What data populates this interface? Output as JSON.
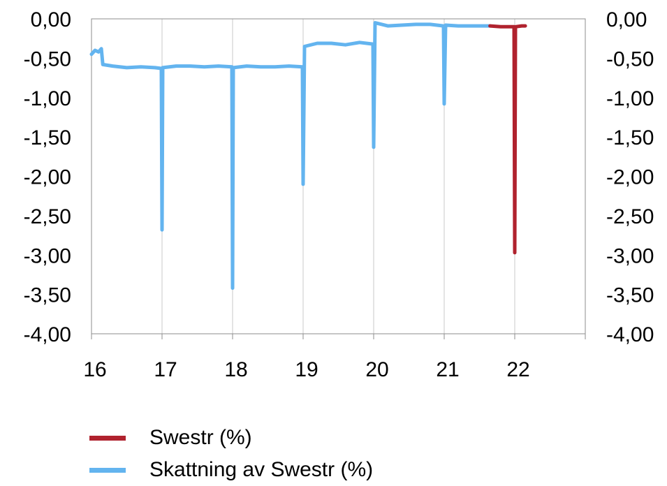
{
  "chart_data": {
    "type": "line",
    "title": "",
    "xlabel": "",
    "ylabel": "",
    "xlim": [
      16,
      23
    ],
    "ylim": [
      -4.0,
      0.0
    ],
    "x_ticks": [
      "16",
      "17",
      "18",
      "19",
      "20",
      "21",
      "22"
    ],
    "y_ticks": [
      "0,00",
      "-0,50",
      "-1,00",
      "-1,50",
      "-2,00",
      "-2,50",
      "-3,00",
      "-3,50",
      "-4,00"
    ],
    "grid": "vertical",
    "legend_position": "bottom",
    "series": [
      {
        "name": "Skattning av Swestr (%)",
        "color": "#63b4ef",
        "points": [
          [
            16.0,
            -0.45
          ],
          [
            16.05,
            -0.4
          ],
          [
            16.1,
            -0.42
          ],
          [
            16.14,
            -0.38
          ],
          [
            16.16,
            -0.58
          ],
          [
            16.3,
            -0.6
          ],
          [
            16.5,
            -0.62
          ],
          [
            16.7,
            -0.61
          ],
          [
            16.9,
            -0.62
          ],
          [
            16.99,
            -0.63
          ],
          [
            17.0,
            -2.68
          ],
          [
            17.01,
            -0.62
          ],
          [
            17.2,
            -0.6
          ],
          [
            17.4,
            -0.6
          ],
          [
            17.6,
            -0.61
          ],
          [
            17.8,
            -0.6
          ],
          [
            17.99,
            -0.61
          ],
          [
            18.0,
            -3.42
          ],
          [
            18.01,
            -0.62
          ],
          [
            18.2,
            -0.6
          ],
          [
            18.4,
            -0.61
          ],
          [
            18.6,
            -0.61
          ],
          [
            18.8,
            -0.6
          ],
          [
            18.99,
            -0.61
          ],
          [
            19.0,
            -2.1
          ],
          [
            19.02,
            -0.35
          ],
          [
            19.2,
            -0.31
          ],
          [
            19.4,
            -0.31
          ],
          [
            19.6,
            -0.33
          ],
          [
            19.8,
            -0.3
          ],
          [
            19.99,
            -0.32
          ],
          [
            20.0,
            -1.63
          ],
          [
            20.02,
            -0.05
          ],
          [
            20.2,
            -0.09
          ],
          [
            20.4,
            -0.08
          ],
          [
            20.6,
            -0.07
          ],
          [
            20.8,
            -0.07
          ],
          [
            20.99,
            -0.09
          ],
          [
            21.0,
            -1.08
          ],
          [
            21.02,
            -0.08
          ],
          [
            21.2,
            -0.09
          ],
          [
            21.4,
            -0.09
          ],
          [
            21.6,
            -0.09
          ],
          [
            21.65,
            -0.09
          ]
        ]
      },
      {
        "name": "Swestr (%)",
        "color": "#b0222e",
        "points": [
          [
            21.65,
            -0.09
          ],
          [
            21.8,
            -0.1
          ],
          [
            21.95,
            -0.1
          ],
          [
            21.99,
            -0.1
          ],
          [
            22.0,
            -2.97
          ],
          [
            22.01,
            -0.1
          ],
          [
            22.1,
            -0.09
          ],
          [
            22.15,
            -0.09
          ]
        ]
      }
    ]
  }
}
